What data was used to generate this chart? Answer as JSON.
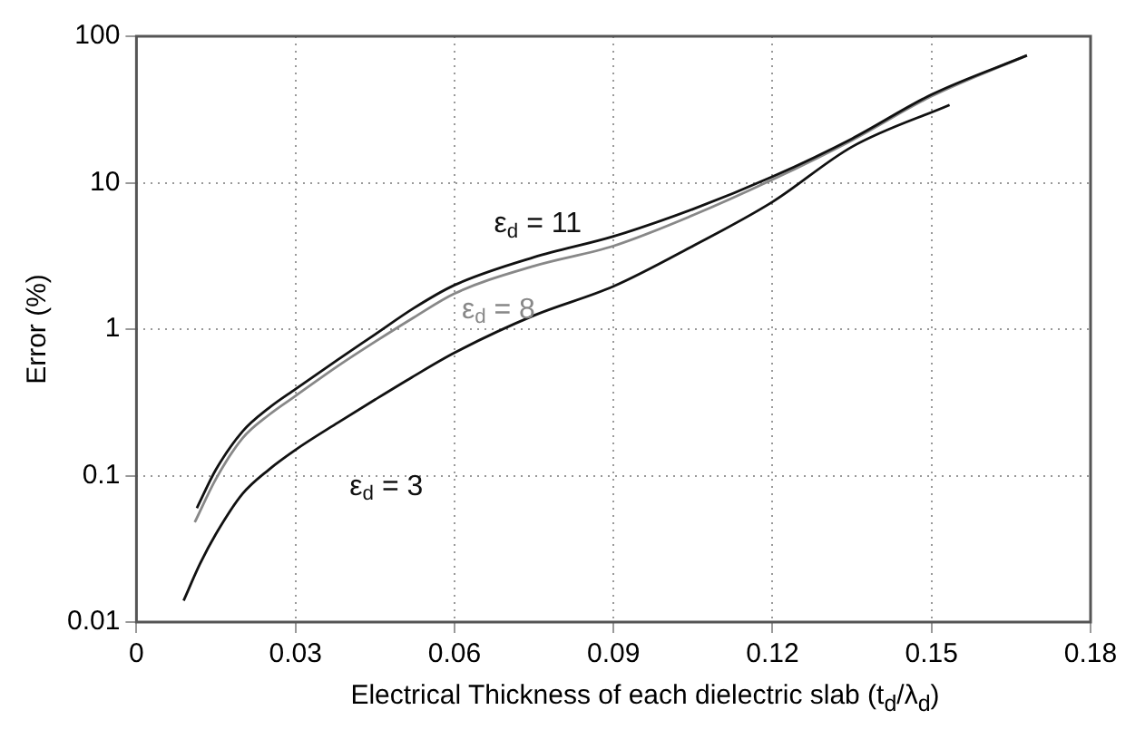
{
  "chart_data": {
    "type": "line",
    "xlabel": "Electrical Thickness of each dielectric slab (t$_{d}$/λ$_{d}$)",
    "ylabel": "Error (%)",
    "xlim": [
      0,
      0.18
    ],
    "xticks": [
      0,
      0.03,
      0.06,
      0.09,
      0.12,
      0.15,
      0.18
    ],
    "ylim": [
      0.01,
      100
    ],
    "yticks": [
      0.01,
      0.1,
      1,
      10,
      100
    ],
    "log": "y",
    "grid": true,
    "legend": false,
    "marker": "none",
    "line_style": "solid",
    "series": [
      {
        "name": "ε$_{d}$ = 11",
        "color": "#111111",
        "x": [
          0.0114,
          0.015,
          0.02,
          0.025,
          0.03,
          0.038,
          0.045,
          0.0523,
          0.06,
          0.075,
          0.09,
          0.105,
          0.12,
          0.135,
          0.15,
          0.168
        ],
        "values": [
          0.06,
          0.11,
          0.2,
          0.29,
          0.39,
          0.62,
          0.92,
          1.39,
          2.0,
          3.1,
          4.3,
          6.6,
          11,
          20,
          40,
          74
        ]
      },
      {
        "name": "ε$_{d}$ = 8",
        "color": "#888888",
        "x": [
          0.011,
          0.015,
          0.02,
          0.025,
          0.03,
          0.038,
          0.045,
          0.0523,
          0.06,
          0.075,
          0.09,
          0.105,
          0.12,
          0.135,
          0.15,
          0.168
        ],
        "values": [
          0.048,
          0.095,
          0.18,
          0.26,
          0.35,
          0.56,
          0.82,
          1.2,
          1.75,
          2.7,
          3.7,
          6.0,
          10.5,
          19.5,
          39,
          74
        ]
      },
      {
        "name": "ε$_{d}$ = 3",
        "color": "#111111",
        "x": [
          0.0089,
          0.012,
          0.015,
          0.02,
          0.025,
          0.03,
          0.038,
          0.045,
          0.052,
          0.06,
          0.075,
          0.09,
          0.105,
          0.12,
          0.135,
          0.1534
        ],
        "values": [
          0.014,
          0.025,
          0.04,
          0.075,
          0.11,
          0.15,
          0.23,
          0.33,
          0.47,
          0.69,
          1.24,
          1.96,
          3.7,
          7.4,
          17.6,
          34
        ]
      }
    ]
  }
}
